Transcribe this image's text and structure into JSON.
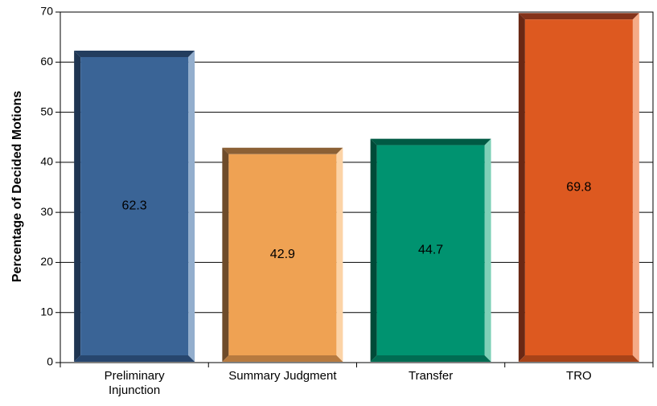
{
  "chart_data": {
    "type": "bar",
    "categories": [
      "Preliminary\nInjunction",
      "Summary Judgment",
      "Transfer",
      "TRO"
    ],
    "values": [
      62.3,
      42.9,
      44.7,
      69.8
    ],
    "title": "",
    "xlabel": "",
    "ylabel": "Percentage of Decided Motions",
    "ylim": [
      0,
      70
    ],
    "yticks": [
      0,
      10,
      20,
      30,
      40,
      50,
      60,
      70
    ],
    "grid": true,
    "legend": "none",
    "bar_colors": [
      {
        "face": "#3a6496",
        "top": "#233d5e",
        "left": "#1f3552",
        "right": "#93aecd",
        "bottom": "#27466e"
      },
      {
        "face": "#efa253",
        "top": "#8b6035",
        "left": "#6e4b2a",
        "right": "#fcd3a6",
        "bottom": "#b77a3f"
      },
      {
        "face": "#009370",
        "top": "#005a44",
        "left": "#004a38",
        "right": "#7fd0b7",
        "bottom": "#006c52"
      },
      {
        "face": "#dd5920",
        "top": "#84331a",
        "left": "#6a2814",
        "right": "#f5ab87",
        "bottom": "#a84318"
      }
    ]
  }
}
